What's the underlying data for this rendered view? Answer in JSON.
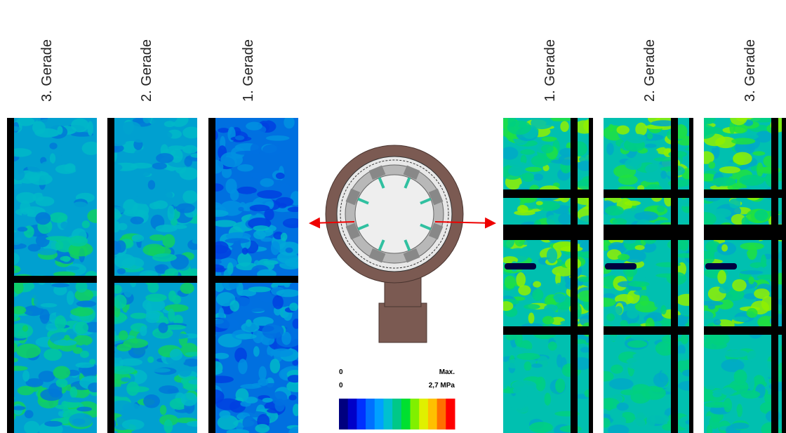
{
  "left_labels": [
    "3. Gerade",
    "2. Gerade",
    "1. Gerade"
  ],
  "right_labels": [
    "1. Gerade",
    "2. Gerade",
    "3. Gerade"
  ],
  "legend": {
    "min_label": "0",
    "max_label": "Max.",
    "min_value": "0",
    "max_value": "2,7 MPa",
    "colors": [
      "#00007f",
      "#0000c8",
      "#0030ff",
      "#0070ff",
      "#00a0ff",
      "#00c0d0",
      "#00c888",
      "#00e030",
      "#80f000",
      "#e0f000",
      "#ffc000",
      "#ff7000",
      "#ff0000"
    ]
  }
}
